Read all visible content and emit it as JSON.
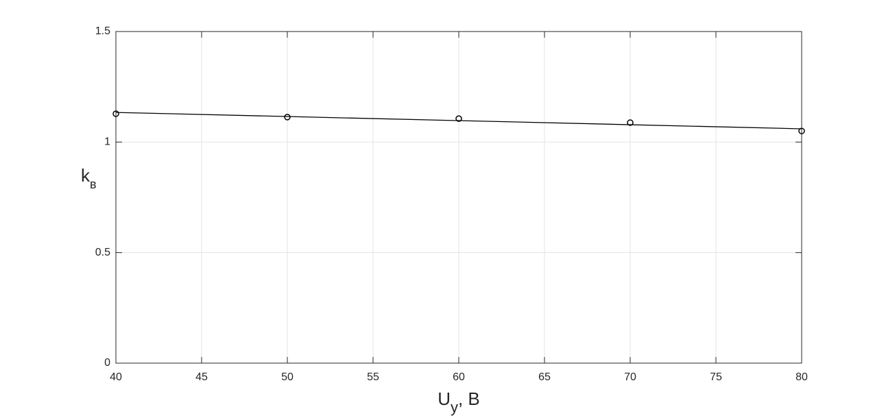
{
  "chart_data": {
    "type": "scatter",
    "xlabel": {
      "main": "U",
      "sub": "y",
      "suffix": ", В"
    },
    "ylabel": {
      "main": "k",
      "sub": "в"
    },
    "series": [
      {
        "mode": "markers",
        "color": "#000000",
        "x": [
          40,
          50,
          60,
          70,
          80
        ],
        "values": [
          1.128,
          1.113,
          1.106,
          1.088,
          1.05
        ]
      },
      {
        "mode": "line",
        "color": "#000000",
        "x": [
          40,
          80
        ],
        "values": [
          1.134,
          1.06
        ]
      }
    ],
    "xlim": [
      40,
      80
    ],
    "xticks": [
      40,
      45,
      50,
      55,
      60,
      65,
      70,
      75,
      80
    ],
    "ylim": [
      0,
      1.5
    ],
    "yticks": [
      0,
      0.5,
      1,
      1.5
    ],
    "grid": true
  }
}
